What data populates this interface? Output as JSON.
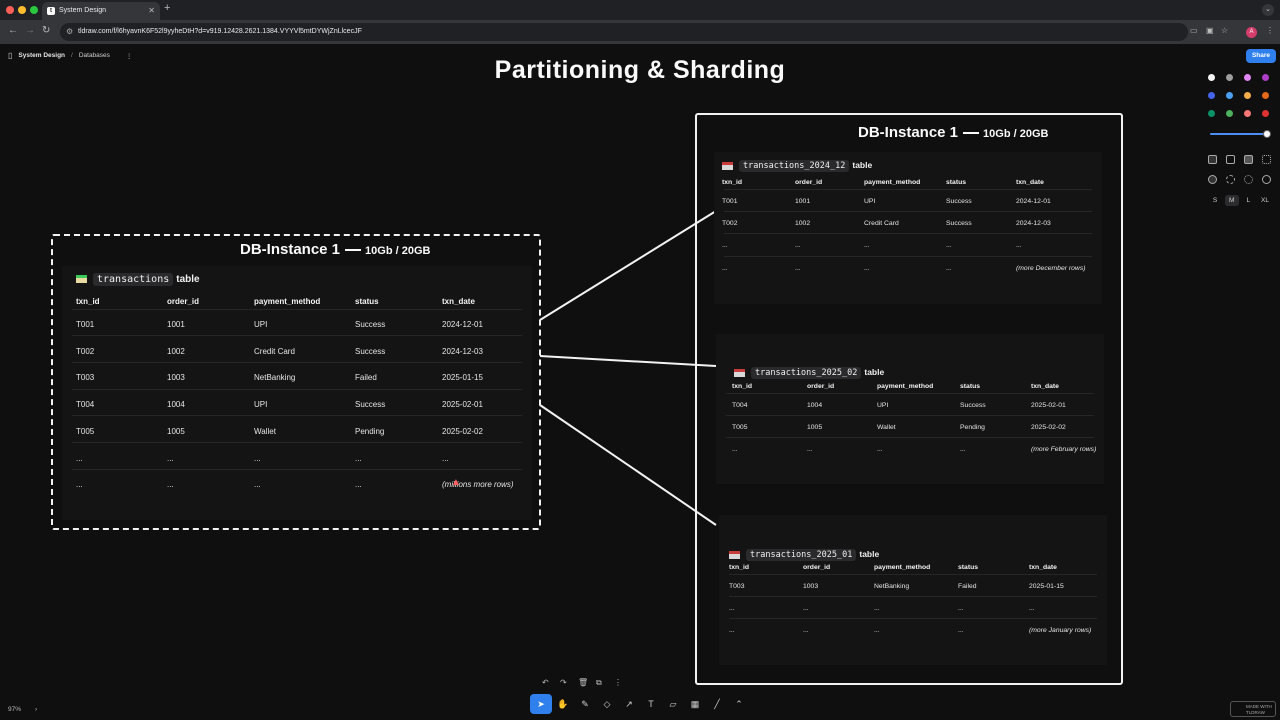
{
  "browser": {
    "tab_title": "System Design",
    "url": "tldraw.com/f/l6hyavnK6F52l9yyheDtH?d=v919.12428.2621.1384.VYYVl5mtDYWjZnLlcecJF",
    "avatar_initial": "A"
  },
  "header": {
    "breadcrumb_root": "System Design",
    "breadcrumb_page": "Databases",
    "share_label": "Share"
  },
  "canvas": {
    "title": "Partitioning & Sharding"
  },
  "left_db": {
    "name": "DB-Instance 1",
    "capacity": "10Gb / 20GB",
    "table_name": "transactions",
    "table_word": "table",
    "columns": [
      "txn_id",
      "order_id",
      "payment_method",
      "status",
      "txn_date"
    ],
    "rows": [
      [
        "T001",
        "1001",
        "UPI",
        "Success",
        "2024-12-01"
      ],
      [
        "T002",
        "1002",
        "Credit Card",
        "Success",
        "2024-12-03"
      ],
      [
        "T003",
        "1003",
        "NetBanking",
        "Failed",
        "2025-01-15"
      ],
      [
        "T004",
        "1004",
        "UPI",
        "Success",
        "2025-02-01"
      ],
      [
        "T005",
        "1005",
        "Wallet",
        "Pending",
        "2025-02-02"
      ],
      [
        "...",
        "...",
        "...",
        "...",
        "..."
      ],
      [
        "...",
        "...",
        "...",
        "...",
        "(millions more rows)"
      ]
    ]
  },
  "right_db": {
    "name": "DB-Instance 1",
    "capacity": "10Gb / 20GB",
    "table_word": "table",
    "partitions": [
      {
        "table_name": "transactions_2024_12",
        "columns": [
          "txn_id",
          "order_id",
          "payment_method",
          "status",
          "txn_date"
        ],
        "rows": [
          [
            "T001",
            "1001",
            "UPI",
            "Success",
            "2024-12-01"
          ],
          [
            "T002",
            "1002",
            "Credit Card",
            "Success",
            "2024-12-03"
          ],
          [
            "...",
            "...",
            "...",
            "...",
            "..."
          ],
          [
            "...",
            "...",
            "...",
            "...",
            "(more December rows)"
          ]
        ]
      },
      {
        "table_name": "transactions_2025_02",
        "columns": [
          "txn_id",
          "order_id",
          "payment_method",
          "status",
          "txn_date"
        ],
        "rows": [
          [
            "T004",
            "1004",
            "UPI",
            "Success",
            "2025-02-01"
          ],
          [
            "T005",
            "1005",
            "Wallet",
            "Pending",
            "2025-02-02"
          ],
          [
            "...",
            "...",
            "...",
            "...",
            "(more February rows)"
          ]
        ]
      },
      {
        "table_name": "transactions_2025_01",
        "columns": [
          "txn_id",
          "order_id",
          "payment_method",
          "status",
          "txn_date"
        ],
        "rows": [
          [
            "T003",
            "1003",
            "NetBanking",
            "Failed",
            "2025-01-15"
          ],
          [
            "...",
            "...",
            "...",
            "...",
            "..."
          ],
          [
            "...",
            "...",
            "...",
            "...",
            "(more January rows)"
          ]
        ]
      }
    ]
  },
  "style_panel": {
    "colors": [
      "#f5f5f5",
      "#9e9e9e",
      "#e085f4",
      "#ae3ec9",
      "#4465e9",
      "#4ba1f1",
      "#f1ac4b",
      "#e16919",
      "#099268",
      "#4cb05e",
      "#f87777",
      "#e03131"
    ],
    "sizes": [
      "S",
      "M",
      "L",
      "XL"
    ],
    "selected_size": "M"
  },
  "footer": {
    "zoom": "97%",
    "made_with": "MADE WITH TLDRAW"
  },
  "toolbar": {
    "tools": [
      "select-icon",
      "hand-icon",
      "draw-icon",
      "eraser-icon",
      "arrow-icon",
      "text-icon",
      "note-icon",
      "frame-icon",
      "line-icon",
      "more-chevron-icon"
    ],
    "active_tool": "select-icon"
  }
}
